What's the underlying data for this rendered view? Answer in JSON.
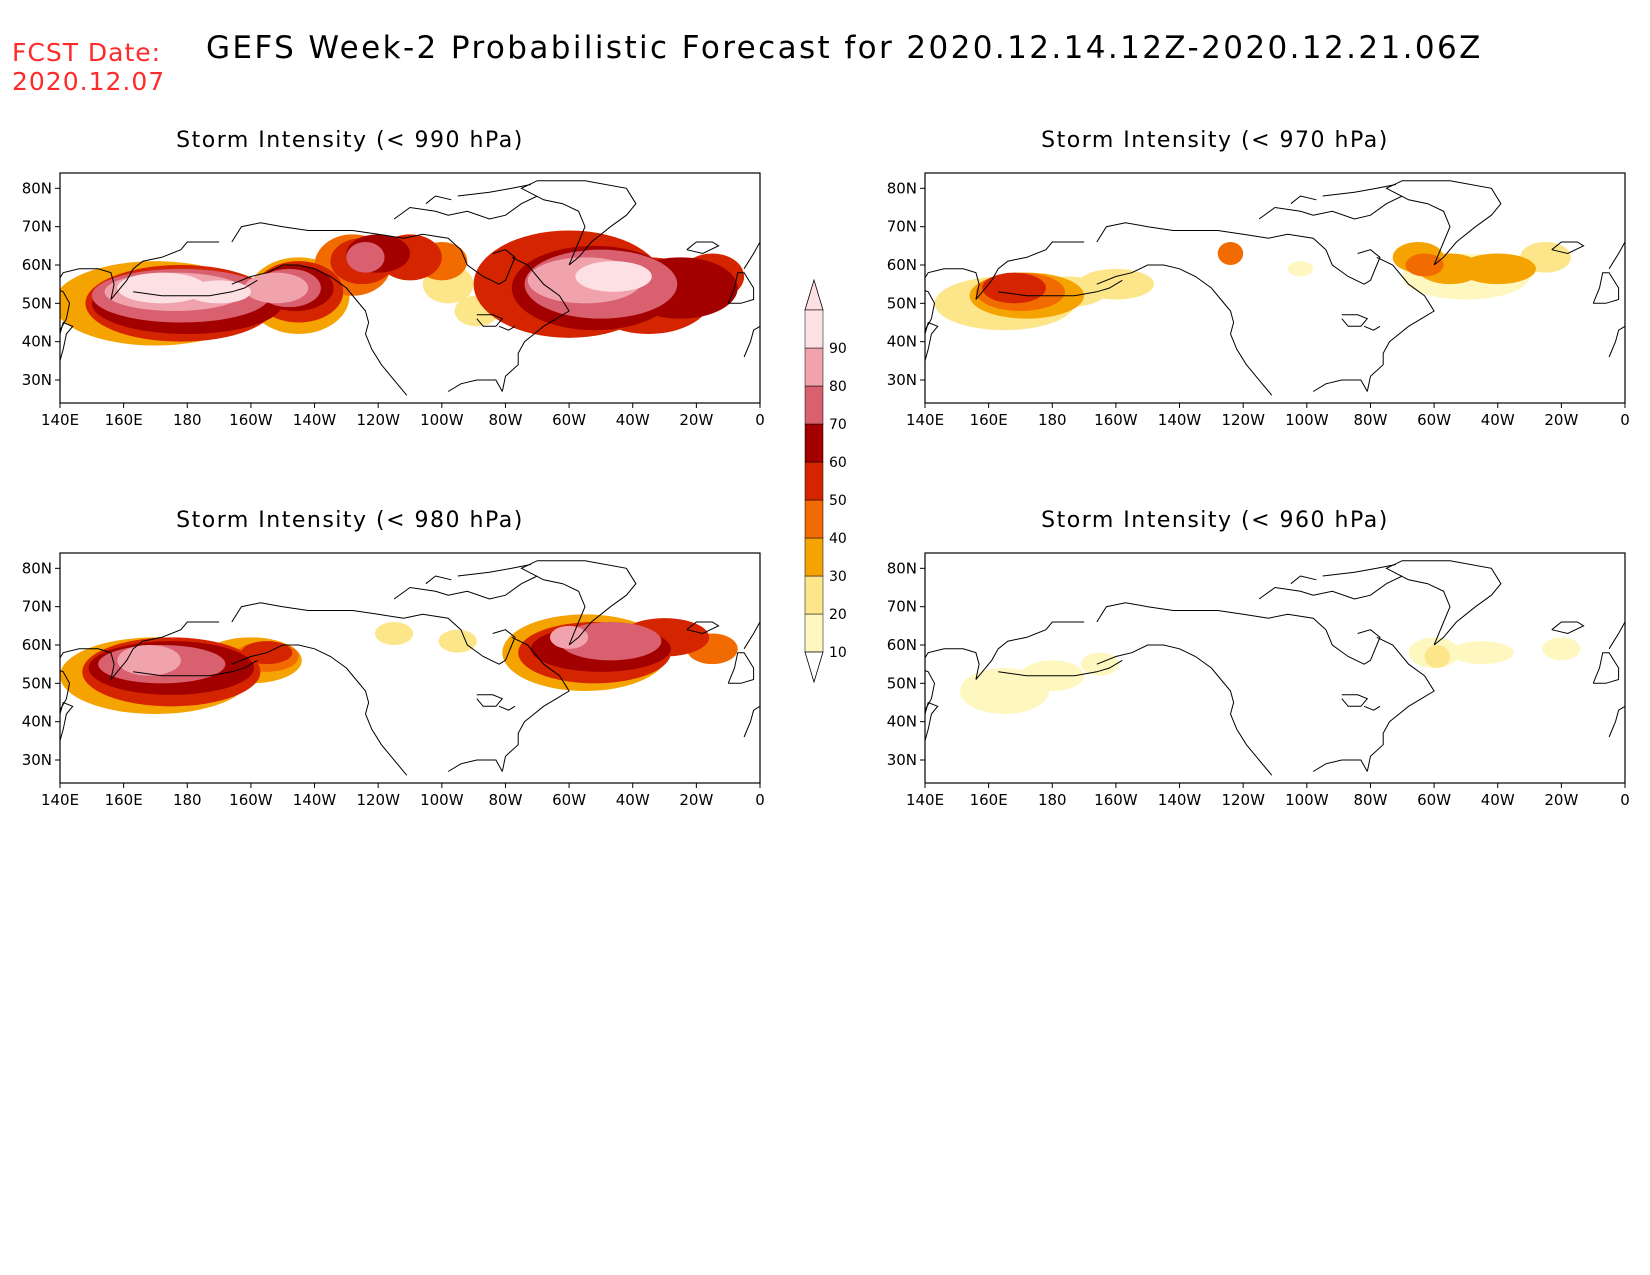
{
  "header": {
    "fcst_label": "FCST Date:",
    "fcst_date": "2020.12.07",
    "title": "GEFS Week-2 Probabilistic Forecast for 2020.12.14.12Z-2020.12.21.06Z"
  },
  "axes": {
    "x_labels": [
      "140E",
      "160E",
      "180",
      "160W",
      "140W",
      "120W",
      "100W",
      "80W",
      "60W",
      "40W",
      "20W",
      "0"
    ],
    "y_labels": [
      "80N",
      "70N",
      "60N",
      "50N",
      "40N",
      "30N"
    ]
  },
  "colorbar": {
    "levels": [
      "10",
      "20",
      "30",
      "40",
      "50",
      "60",
      "70",
      "80",
      "90"
    ],
    "colors": [
      "#fff7c0",
      "#fde68a",
      "#f5a300",
      "#f26b00",
      "#d52400",
      "#a30000",
      "#d8606f",
      "#f0a3ad",
      "#fde0e4"
    ]
  },
  "panels": [
    {
      "title": "Storm Intensity (< 990 hPa)",
      "data_layer": "p990"
    },
    {
      "title": "Storm Intensity (< 970 hPa)",
      "data_layer": "p970"
    },
    {
      "title": "Storm Intensity (< 980 hPa)",
      "data_layer": "p980"
    },
    {
      "title": "Storm Intensity (< 960 hPa)",
      "data_layer": "p960"
    }
  ]
}
